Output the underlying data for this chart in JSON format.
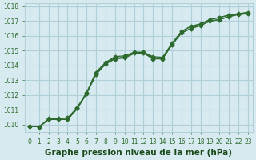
{
  "line1_x": [
    0,
    1,
    2,
    3,
    4,
    5,
    6,
    7,
    8,
    9,
    10,
    11,
    12,
    13,
    14,
    15,
    16,
    17,
    18,
    19,
    20,
    21,
    22,
    23
  ],
  "line1_y": [
    1009.9,
    1009.85,
    1010.4,
    1010.4,
    1010.45,
    1011.15,
    1012.15,
    1013.5,
    1014.2,
    1014.6,
    1014.65,
    1014.9,
    1014.9,
    1014.6,
    1014.55,
    1015.5,
    1016.3,
    1016.65,
    1016.8,
    1017.1,
    1017.25,
    1017.4,
    1017.5,
    1017.55
  ],
  "line2_x": [
    0,
    1,
    2,
    3,
    4,
    5,
    6,
    7,
    8,
    9,
    10,
    11,
    12,
    13,
    14,
    15,
    16,
    17,
    18,
    19,
    20,
    21,
    22,
    23
  ],
  "line2_y": [
    1009.9,
    1009.85,
    1010.35,
    1010.35,
    1010.35,
    1011.1,
    1012.1,
    1013.4,
    1014.1,
    1014.45,
    1014.55,
    1014.85,
    1014.85,
    1014.45,
    1014.45,
    1015.4,
    1016.2,
    1016.5,
    1016.7,
    1017.0,
    1017.1,
    1017.3,
    1017.45,
    1017.5
  ],
  "line3_x": [
    0,
    1,
    2,
    3,
    4,
    5,
    6,
    7,
    8,
    9,
    10,
    11,
    12,
    13,
    14,
    15,
    16,
    17,
    18,
    19,
    20,
    21,
    22,
    23
  ],
  "line3_y": [
    1009.9,
    1009.85,
    1010.35,
    1010.35,
    1010.35,
    1011.1,
    1012.15,
    1013.55,
    1014.2,
    1014.5,
    1014.55,
    1014.85,
    1014.9,
    1014.5,
    1014.5,
    1015.45,
    1016.3,
    1016.65,
    1016.8,
    1017.1,
    1017.25,
    1017.4,
    1017.5,
    1017.6
  ],
  "line4_x": [
    0,
    1,
    2,
    3,
    4,
    5,
    6,
    7,
    8,
    9,
    10,
    11,
    12,
    13,
    14,
    15,
    16,
    17,
    18,
    19,
    20,
    21,
    22,
    23
  ],
  "line4_y": [
    1009.9,
    1009.85,
    1010.35,
    1010.35,
    1010.35,
    1011.05,
    1012.1,
    1013.4,
    1014.1,
    1014.45,
    1014.5,
    1014.8,
    1014.85,
    1014.45,
    1014.45,
    1015.4,
    1016.2,
    1016.5,
    1016.7,
    1017.0,
    1017.1,
    1017.3,
    1017.45,
    1017.5
  ],
  "bg_color": "#d6eaf0",
  "grid_color": "#b0cfd8",
  "line_color": "#2d6a2d",
  "marker_color": "#2d6a2d",
  "xlabel": "Graphe pression niveau de la mer (hPa)",
  "xlabel_color": "#1a4a1a",
  "ylim": [
    1009.5,
    1018.2
  ],
  "yticks": [
    1010,
    1011,
    1012,
    1013,
    1014,
    1015,
    1016,
    1017,
    1018
  ],
  "xlim": [
    -0.5,
    23.5
  ],
  "xticks": [
    0,
    1,
    2,
    3,
    4,
    5,
    6,
    7,
    8,
    9,
    10,
    11,
    12,
    13,
    14,
    15,
    16,
    17,
    18,
    19,
    20,
    21,
    22,
    23
  ],
  "tick_color": "#2d6a2d",
  "tick_fontsize": 5.5,
  "xlabel_fontsize": 7.5
}
